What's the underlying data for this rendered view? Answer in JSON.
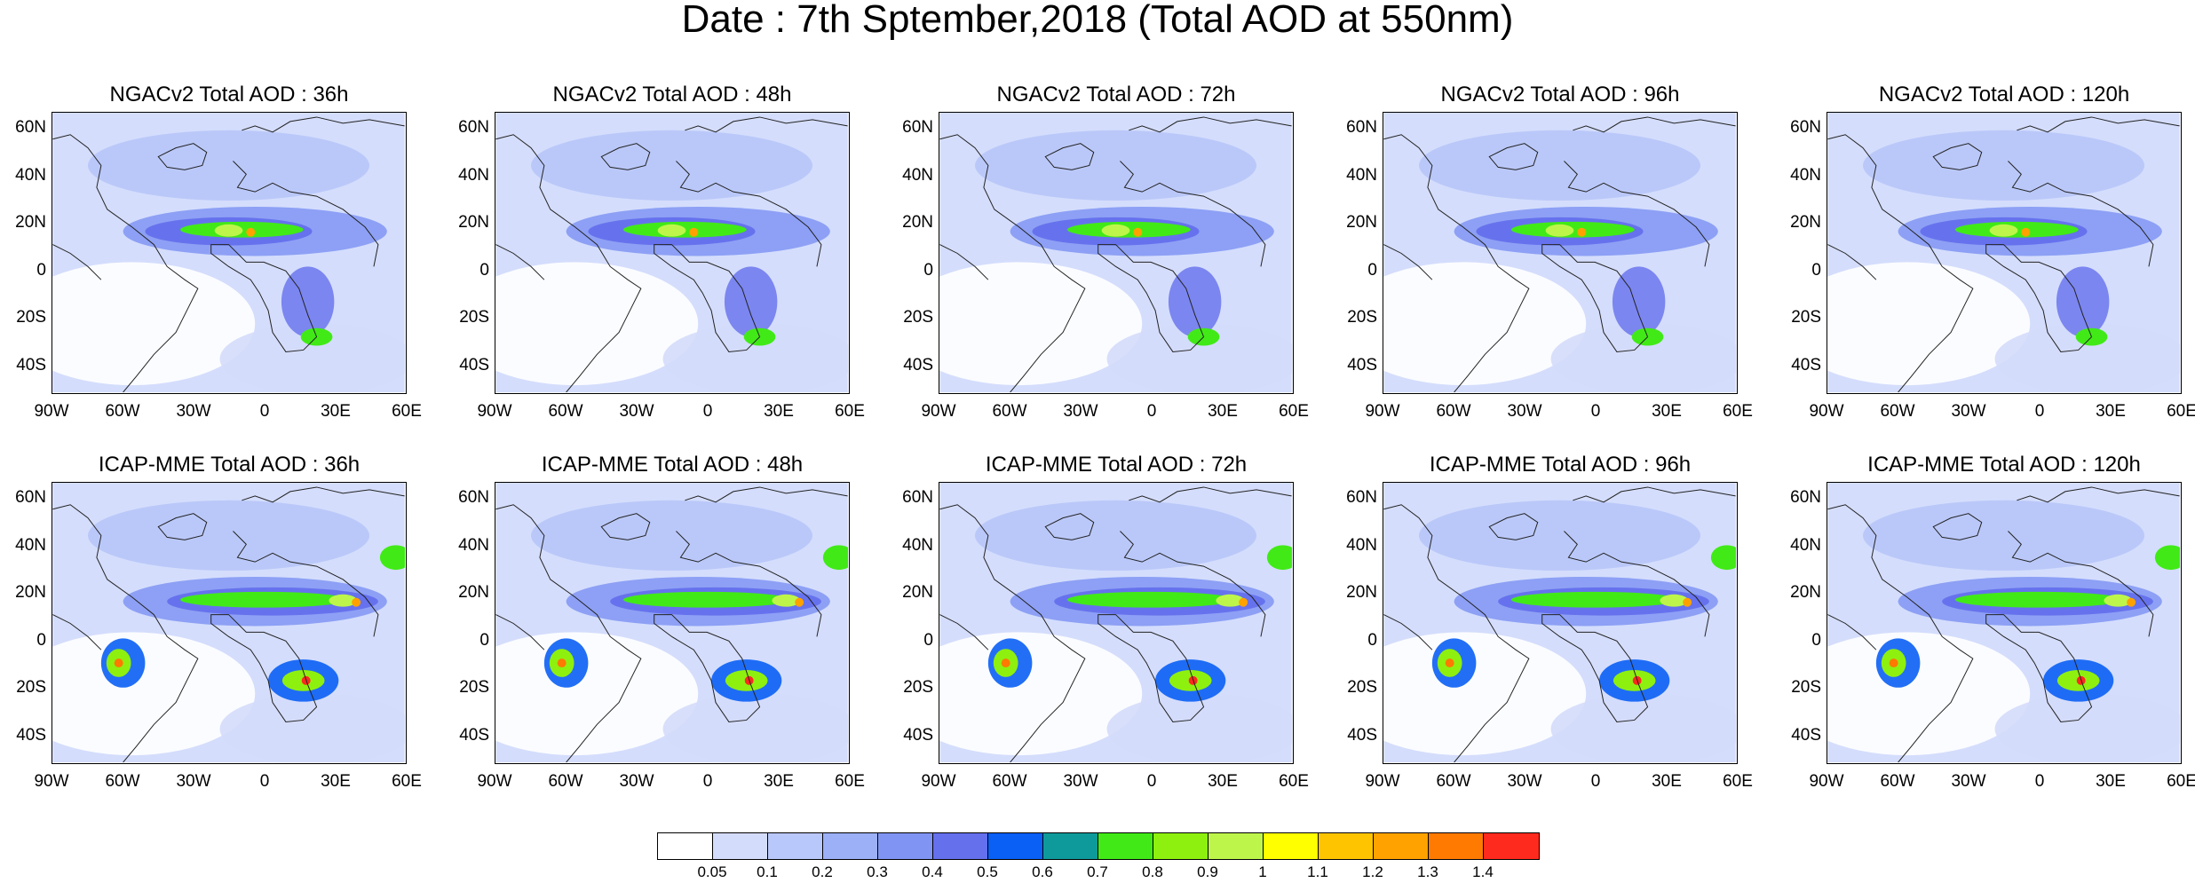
{
  "title": "Date : 7th Sptember,2018 (Total AOD at 550nm)",
  "lat_labels": [
    "60N",
    "40N",
    "20N",
    "0",
    "20S",
    "40S"
  ],
  "lon_labels": [
    "90W",
    "60W",
    "30W",
    "0",
    "30E",
    "60E"
  ],
  "panels": [
    {
      "title": "NGACv2 Total AOD : 36h",
      "model": "NGACv2",
      "lead": "36h"
    },
    {
      "title": "NGACv2 Total AOD : 48h",
      "model": "NGACv2",
      "lead": "48h"
    },
    {
      "title": "NGACv2 Total AOD : 72h",
      "model": "NGACv2",
      "lead": "72h"
    },
    {
      "title": "NGACv2 Total AOD : 96h",
      "model": "NGACv2",
      "lead": "96h"
    },
    {
      "title": "NGACv2 Total AOD : 120h",
      "model": "NGACv2",
      "lead": "120h"
    },
    {
      "title": "ICAP-MME Total AOD : 36h",
      "model": "ICAP-MME",
      "lead": "36h"
    },
    {
      "title": "ICAP-MME Total AOD : 48h",
      "model": "ICAP-MME",
      "lead": "48h"
    },
    {
      "title": "ICAP-MME Total AOD : 72h",
      "model": "ICAP-MME",
      "lead": "72h"
    },
    {
      "title": "ICAP-MME Total AOD : 96h",
      "model": "ICAP-MME",
      "lead": "96h"
    },
    {
      "title": "ICAP-MME Total AOD : 120h",
      "model": "ICAP-MME",
      "lead": "120h"
    }
  ],
  "colorbar": {
    "colors": [
      "#ffffff",
      "#d4dcfb",
      "#b9c8fa",
      "#9bb0f7",
      "#8095f3",
      "#6470ec",
      "#0a5ff5",
      "#0e9a9a",
      "#41ea16",
      "#8ef00f",
      "#bef54b",
      "#ffff00",
      "#ffc400",
      "#ffa200",
      "#ff7a00",
      "#ff2a1e"
    ],
    "labels": [
      "0.05",
      "0.1",
      "0.2",
      "0.3",
      "0.4",
      "0.5",
      "0.6",
      "0.7",
      "0.8",
      "0.9",
      "1",
      "1.1",
      "1.2",
      "1.3",
      "1.4"
    ]
  }
}
